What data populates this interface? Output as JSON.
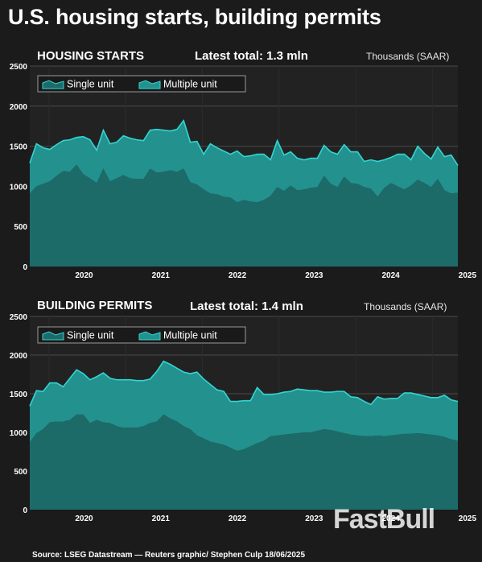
{
  "title": "U.S. housing starts, building permits",
  "source": "Source: LSEG Datastream — Reuters graphic/ Stephen Culp 18/06/2025",
  "watermark": "FastBull",
  "colors": {
    "background": "#1b1b1b",
    "plot_bg": "#222222",
    "single_fill": "#1d6b69",
    "multi_fill": "#23918e",
    "line": "#33d6d3",
    "grid": "#4a4a4a"
  },
  "chart_data": [
    {
      "type": "area",
      "panel_label": "HOUSING STARTS",
      "latest_label": "Latest total: 1.3 mln",
      "units": "Thousands (SAAR)",
      "stacked": true,
      "x_start": "2019-10",
      "x_end": "2025-05",
      "x_ticks": [
        "2020",
        "2021",
        "2022",
        "2023",
        "2024",
        "2025"
      ],
      "ylim": [
        0,
        2500
      ],
      "y_ticks": [
        0,
        500,
        1000,
        1500,
        2000,
        2500
      ],
      "grid": true,
      "legend": "top-left",
      "legend_entries": [
        "Single unit",
        "Multiple unit"
      ],
      "series": [
        {
          "name": "Single unit",
          "values": [
            910,
            1000,
            1030,
            1060,
            1130,
            1190,
            1180,
            1270,
            1150,
            1100,
            1040,
            1220,
            1060,
            1100,
            1140,
            1100,
            1090,
            1090,
            1220,
            1170,
            1180,
            1200,
            1180,
            1220,
            1050,
            1020,
            960,
            910,
            900,
            870,
            860,
            800,
            830,
            810,
            800,
            830,
            880,
            990,
            940,
            1010,
            950,
            960,
            980,
            990,
            1130,
            1030,
            990,
            1120,
            1040,
            1030,
            990,
            970,
            870,
            980,
            1040,
            1000,
            960,
            1010,
            1080,
            1040,
            990,
            1090,
            950,
            910,
            920
          ]
        },
        {
          "name": "Multiple unit",
          "values": [
            380,
            530,
            450,
            400,
            390,
            380,
            400,
            340,
            470,
            480,
            410,
            480,
            470,
            450,
            490,
            500,
            490,
            480,
            480,
            540,
            520,
            490,
            530,
            600,
            500,
            540,
            440,
            620,
            580,
            570,
            540,
            640,
            540,
            570,
            600,
            570,
            450,
            580,
            450,
            420,
            400,
            370,
            370,
            360,
            380,
            400,
            410,
            400,
            390,
            400,
            320,
            360,
            440,
            350,
            320,
            400,
            440,
            320,
            420,
            370,
            350,
            400,
            420,
            480,
            340
          ]
        }
      ]
    },
    {
      "type": "area",
      "panel_label": "BUILDING PERMITS",
      "latest_label": "Latest total: 1.4 mln",
      "units": "Thousands (SAAR)",
      "stacked": true,
      "x_start": "2019-10",
      "x_end": "2025-05",
      "x_ticks": [
        "2020",
        "2021",
        "2022",
        "2023",
        "2024",
        "2025"
      ],
      "ylim": [
        0,
        2500
      ],
      "y_ticks": [
        0,
        500,
        1000,
        1500,
        2000,
        2500
      ],
      "grid": true,
      "legend": "top-left",
      "legend_entries": [
        "Single unit",
        "Multiple unit"
      ],
      "series": [
        {
          "name": "Single unit",
          "values": [
            870,
            990,
            1040,
            1130,
            1140,
            1140,
            1160,
            1230,
            1230,
            1120,
            1160,
            1130,
            1120,
            1080,
            1060,
            1060,
            1060,
            1080,
            1120,
            1140,
            1230,
            1180,
            1140,
            1080,
            1040,
            960,
            920,
            880,
            860,
            840,
            800,
            760,
            780,
            820,
            860,
            890,
            950,
            960,
            970,
            980,
            990,
            1000,
            1000,
            1020,
            1040,
            1030,
            1010,
            990,
            970,
            960,
            950,
            950,
            960,
            950,
            960,
            970,
            980,
            980,
            990,
            980,
            970,
            960,
            940,
            910,
            890
          ]
        },
        {
          "name": "Multiple unit",
          "values": [
            470,
            550,
            490,
            510,
            500,
            450,
            540,
            580,
            530,
            560,
            560,
            640,
            580,
            600,
            620,
            620,
            610,
            590,
            570,
            650,
            690,
            700,
            690,
            700,
            720,
            820,
            770,
            740,
            690,
            690,
            600,
            640,
            630,
            590,
            720,
            600,
            540,
            540,
            550,
            550,
            570,
            550,
            540,
            520,
            480,
            490,
            520,
            540,
            490,
            490,
            450,
            410,
            500,
            480,
            480,
            470,
            530,
            530,
            500,
            490,
            480,
            490,
            540,
            510,
            510
          ]
        }
      ]
    }
  ]
}
